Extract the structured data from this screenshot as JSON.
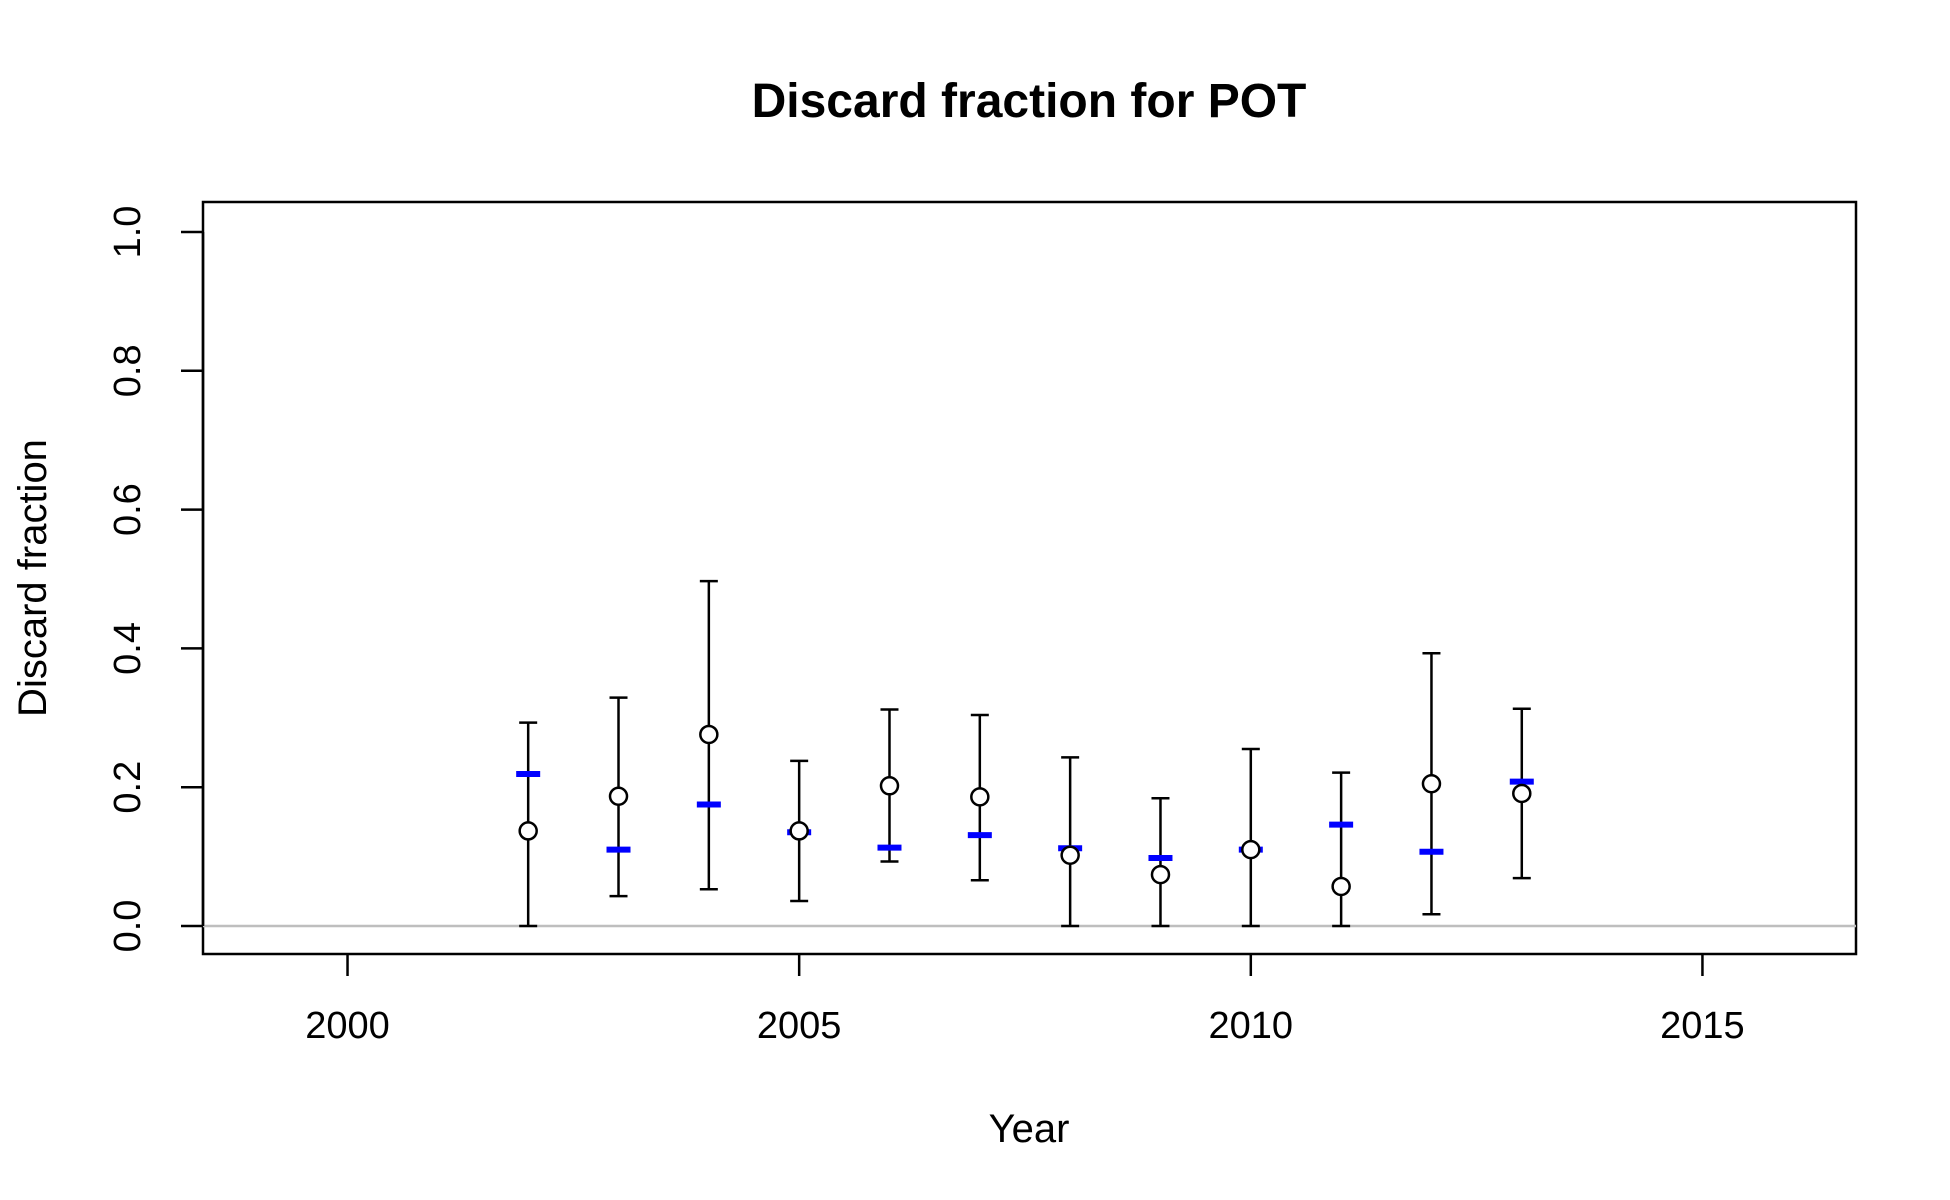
{
  "chart_data": {
    "type": "scatter",
    "title": "Discard fraction for POT",
    "xlabel": "Year",
    "ylabel": "Discard fraction",
    "xlim": [
      1998.4,
      2016.7
    ],
    "ylim": [
      0.0,
      1.0
    ],
    "x_ticks": [
      "2000",
      "2005",
      "2010",
      "2015"
    ],
    "y_ticks": [
      "0.0",
      "0.2",
      "0.4",
      "0.6",
      "0.8",
      "1.0"
    ],
    "colors": {
      "observed": "#000000",
      "expected": "#0000ff",
      "zero_line": "#bebebe"
    },
    "series": [
      {
        "marker": "open-circle",
        "x": [
          2002,
          2003,
          2004,
          2005,
          2006,
          2007,
          2008,
          2009,
          2010,
          2011,
          2012,
          2013
        ],
        "values": [
          0.137,
          0.187,
          0.276,
          0.137,
          0.202,
          0.186,
          0.102,
          0.074,
          0.11,
          0.057,
          0.205,
          0.191
        ],
        "lower": [
          0.0,
          0.043,
          0.053,
          0.036,
          0.093,
          0.066,
          0.0,
          0.0,
          0.0,
          0.0,
          0.017,
          0.069
        ],
        "upper": [
          0.293,
          0.329,
          0.497,
          0.238,
          0.312,
          0.304,
          0.243,
          0.184,
          0.255,
          0.221,
          0.393,
          0.313
        ]
      },
      {
        "marker": "blue-dash",
        "x": [
          2002,
          2003,
          2004,
          2005,
          2006,
          2007,
          2008,
          2009,
          2010,
          2011,
          2012,
          2013
        ],
        "values": [
          0.219,
          0.11,
          0.175,
          0.135,
          0.113,
          0.131,
          0.112,
          0.098,
          0.11,
          0.146,
          0.107,
          0.208
        ]
      }
    ]
  }
}
